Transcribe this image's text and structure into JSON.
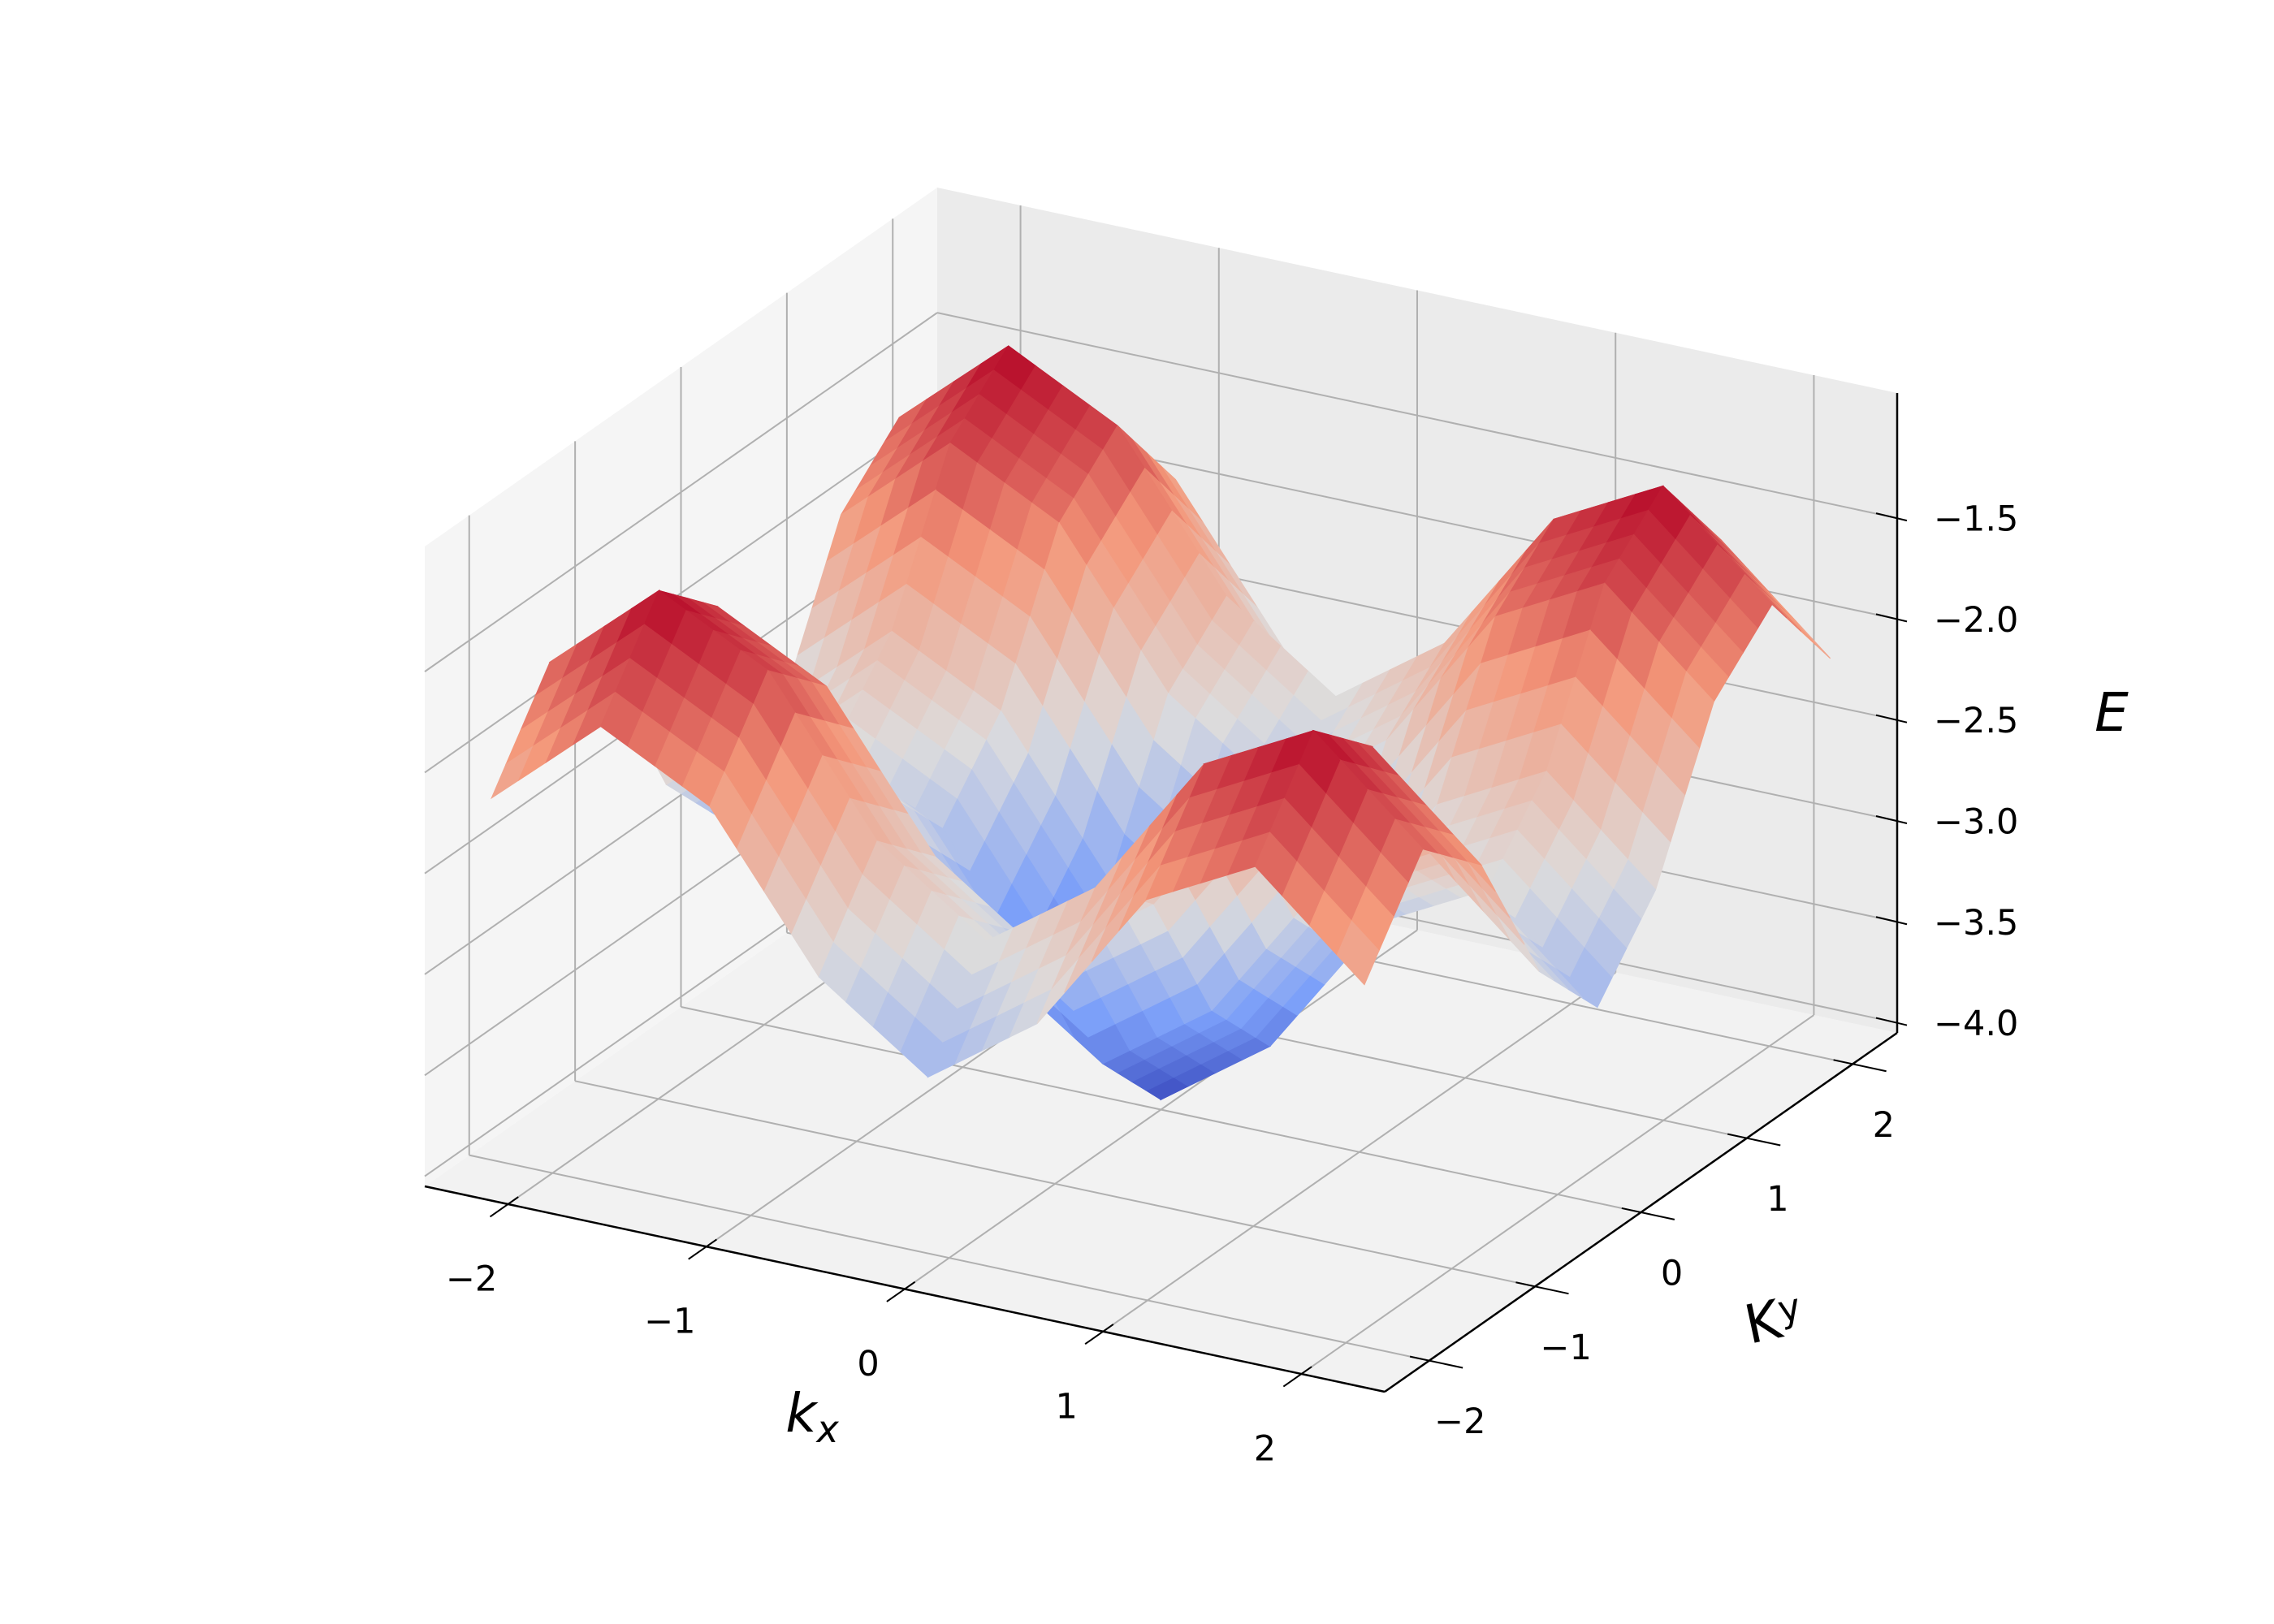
{
  "chart_data": {
    "type": "surface",
    "colormap": "coolwarm",
    "xlabel": {
      "base": "k",
      "sub": "x"
    },
    "ylabel": {
      "base": "K",
      "sub": "y"
    },
    "zlabel": "E",
    "x": [
      -2.2,
      -1.65,
      -1.1,
      -0.55,
      0,
      0.55,
      1.1,
      1.65,
      2.2
    ],
    "y": [
      -2.2,
      -1.65,
      -1.1,
      -0.55,
      0,
      0.55,
      1.1,
      1.65,
      2.2
    ],
    "z": [
      [
        -2.16,
        -1.69,
        -1.97,
        -2.7,
        -3.08,
        -2.7,
        -1.97,
        -1.69,
        -2.16
      ],
      [
        -1.69,
        -1.22,
        -1.5,
        -2.23,
        -2.61,
        -2.23,
        -1.5,
        -1.22,
        -1.69
      ],
      [
        -1.97,
        -1.5,
        -1.78,
        -2.51,
        -2.89,
        -2.51,
        -1.78,
        -1.5,
        -1.97
      ],
      [
        -2.7,
        -2.23,
        -2.51,
        -3.24,
        -3.62,
        -3.24,
        -2.51,
        -2.23,
        -2.7
      ],
      [
        -3.08,
        -2.61,
        -2.89,
        -3.62,
        -4.0,
        -3.62,
        -2.89,
        -2.61,
        -3.08
      ],
      [
        -2.7,
        -2.23,
        -2.51,
        -3.24,
        -3.62,
        -3.24,
        -2.51,
        -2.23,
        -2.7
      ],
      [
        -1.97,
        -1.5,
        -1.78,
        -2.51,
        -2.89,
        -2.51,
        -1.78,
        -1.5,
        -1.97
      ],
      [
        -1.69,
        -1.22,
        -1.5,
        -2.23,
        -2.61,
        -2.23,
        -1.5,
        -1.22,
        -1.69
      ],
      [
        -2.16,
        -1.69,
        -1.97,
        -2.7,
        -3.08,
        -2.7,
        -1.97,
        -1.69,
        -2.16
      ]
    ],
    "xlim": [
      -2.42,
      2.42
    ],
    "ylim": [
      -2.42,
      2.42
    ],
    "zlim": [
      -4.05,
      -0.88
    ],
    "xticks": [
      {
        "value": -2,
        "label": "−2"
      },
      {
        "value": -1,
        "label": "−1"
      },
      0,
      1,
      2
    ],
    "yticks": [
      {
        "value": -2,
        "label": "−2"
      },
      {
        "value": -1,
        "label": "−1"
      },
      0,
      1,
      2
    ],
    "zticks": [
      {
        "value": -4,
        "label": "−4.0"
      },
      {
        "value": -3.5,
        "label": "−3.5"
      },
      {
        "value": -3,
        "label": "−3.0"
      },
      {
        "value": -2.5,
        "label": "−2.5"
      },
      {
        "value": -2,
        "label": "−2.0"
      },
      {
        "value": -1.5,
        "label": "−1.5"
      }
    ],
    "grid": true
  }
}
